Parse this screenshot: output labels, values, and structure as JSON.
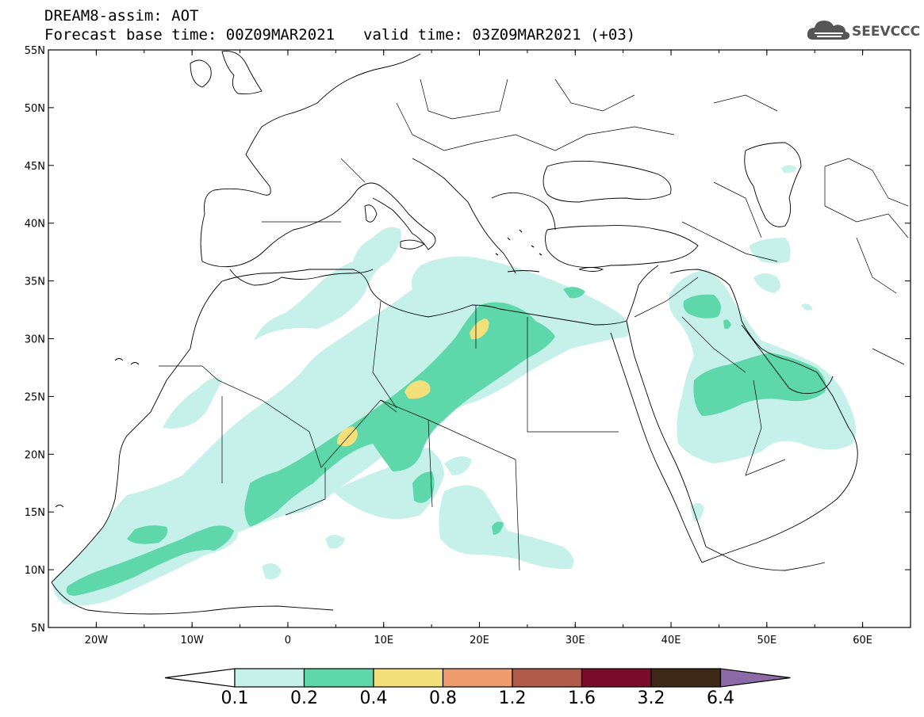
{
  "header": {
    "title": "DREAM8-assim: AOT",
    "base_time": "Forecast base time: 00Z09MAR2021",
    "valid_time": "valid time: 03Z09MAR2021 (+03)"
  },
  "logo": {
    "text": "SEEVCCC",
    "icon": "cloud-icon"
  },
  "map": {
    "lon_labels": [
      "20W",
      "10W",
      "0",
      "10E",
      "20E",
      "30E",
      "40E",
      "50E",
      "60E"
    ],
    "lat_labels": [
      "55N",
      "50N",
      "45N",
      "40N",
      "35N",
      "30N",
      "25N",
      "20N",
      "15N",
      "10N",
      "5N"
    ],
    "lon_range": [
      -25,
      65
    ],
    "lat_range": [
      5,
      55
    ]
  },
  "colorbar": {
    "labels": [
      "0.1",
      "0.2",
      "0.4",
      "0.8",
      "1.2",
      "1.6",
      "3.2",
      "6.4"
    ],
    "colors": [
      "#ffffff",
      "#c6f1ea",
      "#5ed8aa",
      "#f3e07a",
      "#ed9b6f",
      "#b15b4a",
      "#7b0d2c",
      "#3e2817",
      "#8c6aa6"
    ]
  },
  "colors": {
    "aot_low": "#c6f1ea",
    "aot_mid": "#5ed8aa",
    "aot_high": "#f3e07a",
    "outline": "#000000"
  }
}
